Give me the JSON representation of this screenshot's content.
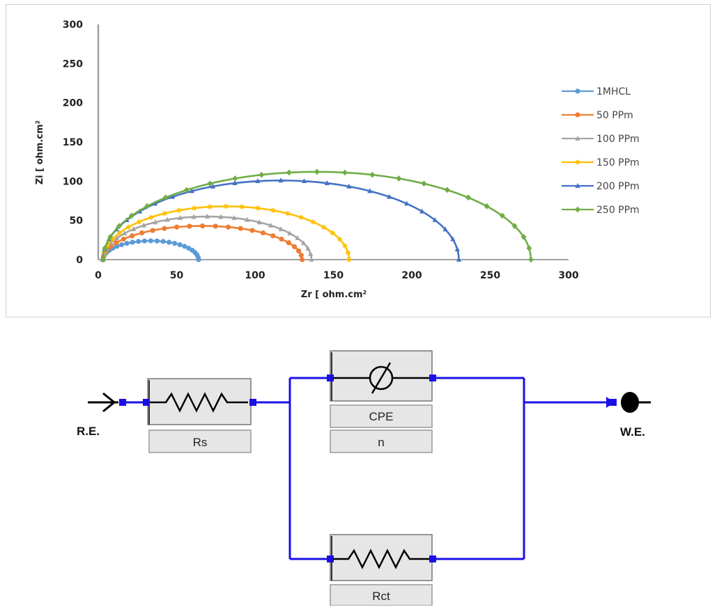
{
  "chart_data": {
    "type": "line",
    "xlabel": "Zr [ ohm.cm²",
    "ylabel": "Zi [ ohm.cm²",
    "xlim": [
      0,
      300
    ],
    "ylim": [
      0,
      300
    ],
    "xticks": [
      0,
      50,
      100,
      150,
      200,
      250,
      300
    ],
    "yticks": [
      0,
      50,
      100,
      150,
      200,
      250,
      300
    ],
    "legend_position": "right",
    "grid": false,
    "series": [
      {
        "name": "1MHCL",
        "color": "#5B9BD5",
        "marker": "circle",
        "x0": 3,
        "xmax": 64,
        "ymax": 24
      },
      {
        "name": "50 PPm",
        "color": "#ED7D31",
        "marker": "circle",
        "x0": 3,
        "xmax": 130,
        "ymax": 43
      },
      {
        "name": "100 PPm",
        "color": "#A5A5A5",
        "marker": "triangle",
        "x0": 3,
        "xmax": 136,
        "ymax": 55
      },
      {
        "name": "150 PPm",
        "color": "#FFC000",
        "marker": "star",
        "x0": 3,
        "xmax": 160,
        "ymax": 68
      },
      {
        "name": "200 PPm",
        "color": "#4472C4",
        "marker": "triangle",
        "x0": 3,
        "xmax": 230,
        "ymax": 101
      },
      {
        "name": "250 PPm",
        "color": "#70AD47",
        "marker": "diamond",
        "x0": 3,
        "xmax": 276,
        "ymax": 112
      }
    ]
  },
  "circuit": {
    "wire_color": "#1a10e6",
    "left_terminal": "R.E.",
    "right_terminal": "W.E.",
    "components": [
      {
        "id": "rs",
        "label": "Rs",
        "symbol": "resistor"
      },
      {
        "id": "cpe",
        "label": "CPE",
        "sublabel": "n",
        "symbol": "cpe"
      },
      {
        "id": "rct",
        "label": "Rct",
        "symbol": "resistor"
      }
    ]
  }
}
